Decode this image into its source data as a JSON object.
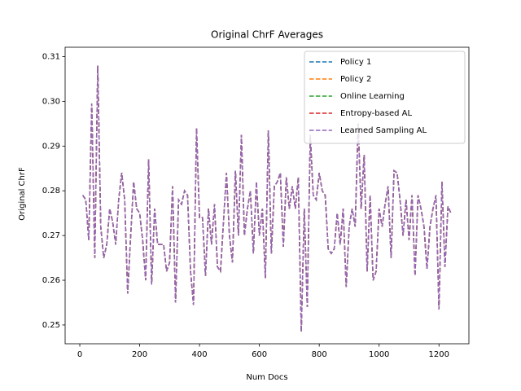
{
  "chart_data": {
    "type": "line",
    "title": "Original ChrF Averages",
    "x_label": "Num Docs",
    "y_label": "Original ChrF",
    "x": [
      10,
      20,
      30,
      40,
      50,
      60,
      70,
      80,
      90,
      100,
      110,
      120,
      130,
      140,
      150,
      160,
      170,
      180,
      190,
      200,
      210,
      220,
      230,
      240,
      250,
      260,
      270,
      280,
      290,
      300,
      310,
      320,
      330,
      340,
      350,
      360,
      370,
      380,
      390,
      400,
      410,
      420,
      430,
      440,
      450,
      460,
      470,
      480,
      490,
      500,
      510,
      520,
      530,
      540,
      550,
      560,
      570,
      580,
      590,
      600,
      610,
      620,
      630,
      640,
      650,
      660,
      670,
      680,
      690,
      700,
      710,
      720,
      730,
      740,
      750,
      760,
      770,
      780,
      790,
      800,
      810,
      820,
      830,
      840,
      850,
      860,
      870,
      880,
      890,
      900,
      910,
      920,
      930,
      940,
      950,
      960,
      970,
      980,
      990,
      1000,
      1010,
      1020,
      1030,
      1040,
      1050,
      1060,
      1070,
      1080,
      1090,
      1100,
      1110,
      1120,
      1130,
      1140,
      1150,
      1160,
      1170,
      1180,
      1190,
      1200,
      1210,
      1220,
      1230,
      1240
    ],
    "series": [
      {
        "name": "Policy 1",
        "color": "#1f77b4",
        "values": [
          0.279,
          0.278,
          0.269,
          0.2995,
          0.265,
          0.308,
          0.272,
          0.265,
          0.268,
          0.276,
          0.273,
          0.268,
          0.278,
          0.284,
          0.278,
          0.257,
          0.27,
          0.282,
          0.276,
          0.275,
          0.269,
          0.26,
          0.287,
          0.259,
          0.276,
          0.268,
          0.268,
          0.268,
          0.262,
          0.264,
          0.281,
          0.255,
          0.278,
          0.277,
          0.28,
          0.279,
          0.262,
          0.2545,
          0.294,
          0.274,
          0.274,
          0.261,
          0.276,
          0.268,
          0.277,
          0.263,
          0.262,
          0.273,
          0.284,
          0.27,
          0.264,
          0.2845,
          0.27,
          0.2925,
          0.27,
          0.276,
          0.28,
          0.266,
          0.282,
          0.27,
          0.276,
          0.2605,
          0.2935,
          0.266,
          0.281,
          0.282,
          0.284,
          0.2675,
          0.283,
          0.276,
          0.281,
          0.276,
          0.283,
          0.2485,
          0.276,
          0.254,
          0.2925,
          0.279,
          0.278,
          0.284,
          0.28,
          0.279,
          0.267,
          0.266,
          0.267,
          0.275,
          0.268,
          0.276,
          0.2585,
          0.272,
          0.276,
          0.272,
          0.295,
          0.276,
          0.288,
          0.262,
          0.279,
          0.26,
          0.262,
          0.276,
          0.272,
          0.277,
          0.281,
          0.265,
          0.2845,
          0.284,
          0.278,
          0.27,
          0.278,
          0.269,
          0.279,
          0.261,
          0.279,
          0.276,
          0.272,
          0.2625,
          0.272,
          0.276,
          0.279,
          0.2535,
          0.282,
          0.263,
          0.2765,
          0.275
        ]
      },
      {
        "name": "Policy 2",
        "color": "#ff7f0e",
        "values": [
          0.279,
          0.278,
          0.269,
          0.2995,
          0.265,
          0.308,
          0.272,
          0.265,
          0.268,
          0.276,
          0.273,
          0.268,
          0.278,
          0.284,
          0.278,
          0.257,
          0.27,
          0.282,
          0.276,
          0.275,
          0.269,
          0.26,
          0.287,
          0.259,
          0.276,
          0.268,
          0.268,
          0.268,
          0.262,
          0.264,
          0.281,
          0.255,
          0.278,
          0.277,
          0.28,
          0.279,
          0.262,
          0.2545,
          0.294,
          0.274,
          0.274,
          0.261,
          0.276,
          0.268,
          0.277,
          0.263,
          0.262,
          0.273,
          0.284,
          0.27,
          0.264,
          0.2845,
          0.27,
          0.2925,
          0.27,
          0.276,
          0.28,
          0.266,
          0.282,
          0.27,
          0.276,
          0.2605,
          0.2935,
          0.266,
          0.281,
          0.282,
          0.284,
          0.2675,
          0.283,
          0.276,
          0.281,
          0.276,
          0.283,
          0.2485,
          0.276,
          0.254,
          0.2925,
          0.279,
          0.278,
          0.284,
          0.28,
          0.279,
          0.267,
          0.266,
          0.267,
          0.275,
          0.268,
          0.276,
          0.2585,
          0.272,
          0.276,
          0.272,
          0.295,
          0.276,
          0.288,
          0.262,
          0.279,
          0.26,
          0.262,
          0.276,
          0.272,
          0.277,
          0.281,
          0.265,
          0.2845,
          0.284,
          0.278,
          0.27,
          0.278,
          0.269,
          0.279,
          0.261,
          0.279,
          0.276,
          0.272,
          0.2625,
          0.272,
          0.276,
          0.279,
          0.2535,
          0.282,
          0.263,
          0.2765,
          0.275
        ]
      },
      {
        "name": "Online Learning",
        "color": "#2ca02c",
        "values": [
          0.279,
          0.278,
          0.269,
          0.2995,
          0.265,
          0.308,
          0.272,
          0.265,
          0.268,
          0.276,
          0.273,
          0.268,
          0.278,
          0.284,
          0.278,
          0.257,
          0.27,
          0.282,
          0.276,
          0.275,
          0.269,
          0.26,
          0.287,
          0.259,
          0.276,
          0.268,
          0.268,
          0.268,
          0.262,
          0.264,
          0.281,
          0.255,
          0.278,
          0.277,
          0.28,
          0.279,
          0.262,
          0.2545,
          0.294,
          0.274,
          0.274,
          0.261,
          0.276,
          0.268,
          0.277,
          0.263,
          0.262,
          0.273,
          0.284,
          0.27,
          0.264,
          0.2845,
          0.27,
          0.2925,
          0.27,
          0.276,
          0.28,
          0.266,
          0.282,
          0.27,
          0.276,
          0.2605,
          0.2935,
          0.266,
          0.281,
          0.282,
          0.284,
          0.2675,
          0.283,
          0.276,
          0.281,
          0.276,
          0.283,
          0.2485,
          0.276,
          0.254,
          0.2925,
          0.279,
          0.278,
          0.284,
          0.28,
          0.279,
          0.267,
          0.266,
          0.267,
          0.275,
          0.268,
          0.276,
          0.2585,
          0.272,
          0.276,
          0.272,
          0.295,
          0.276,
          0.288,
          0.262,
          0.279,
          0.26,
          0.262,
          0.276,
          0.272,
          0.277,
          0.281,
          0.265,
          0.2845,
          0.284,
          0.278,
          0.27,
          0.278,
          0.269,
          0.279,
          0.261,
          0.279,
          0.276,
          0.272,
          0.2625,
          0.272,
          0.276,
          0.279,
          0.2535,
          0.282,
          0.263,
          0.2765,
          0.275
        ]
      },
      {
        "name": "Entropy-based AL",
        "color": "#d62728",
        "values": [
          0.279,
          0.278,
          0.269,
          0.2995,
          0.265,
          0.308,
          0.272,
          0.265,
          0.268,
          0.276,
          0.273,
          0.268,
          0.278,
          0.284,
          0.278,
          0.257,
          0.27,
          0.282,
          0.276,
          0.275,
          0.269,
          0.26,
          0.287,
          0.259,
          0.276,
          0.268,
          0.268,
          0.268,
          0.262,
          0.264,
          0.281,
          0.255,
          0.278,
          0.277,
          0.28,
          0.279,
          0.262,
          0.2545,
          0.294,
          0.274,
          0.274,
          0.261,
          0.276,
          0.268,
          0.277,
          0.263,
          0.262,
          0.273,
          0.284,
          0.27,
          0.264,
          0.2845,
          0.27,
          0.2925,
          0.27,
          0.276,
          0.28,
          0.266,
          0.282,
          0.27,
          0.276,
          0.2605,
          0.2935,
          0.266,
          0.281,
          0.282,
          0.284,
          0.2675,
          0.283,
          0.276,
          0.281,
          0.276,
          0.283,
          0.2485,
          0.276,
          0.254,
          0.2925,
          0.279,
          0.278,
          0.284,
          0.28,
          0.279,
          0.267,
          0.266,
          0.267,
          0.275,
          0.268,
          0.276,
          0.2585,
          0.272,
          0.276,
          0.272,
          0.295,
          0.276,
          0.288,
          0.262,
          0.279,
          0.26,
          0.262,
          0.276,
          0.272,
          0.277,
          0.281,
          0.265,
          0.2845,
          0.284,
          0.278,
          0.27,
          0.278,
          0.269,
          0.279,
          0.261,
          0.279,
          0.276,
          0.272,
          0.2625,
          0.272,
          0.276,
          0.279,
          0.2535,
          0.282,
          0.263,
          0.2765,
          0.275
        ]
      },
      {
        "name": "Learned Sampling AL",
        "color": "#9467bd",
        "values": [
          0.279,
          0.278,
          0.269,
          0.2995,
          0.265,
          0.308,
          0.272,
          0.265,
          0.268,
          0.276,
          0.273,
          0.268,
          0.278,
          0.284,
          0.278,
          0.257,
          0.27,
          0.282,
          0.276,
          0.275,
          0.269,
          0.26,
          0.287,
          0.259,
          0.276,
          0.268,
          0.268,
          0.268,
          0.262,
          0.264,
          0.281,
          0.255,
          0.278,
          0.277,
          0.28,
          0.279,
          0.262,
          0.2545,
          0.294,
          0.274,
          0.274,
          0.261,
          0.276,
          0.268,
          0.277,
          0.263,
          0.262,
          0.273,
          0.284,
          0.27,
          0.264,
          0.2845,
          0.27,
          0.2925,
          0.27,
          0.276,
          0.28,
          0.266,
          0.282,
          0.27,
          0.276,
          0.2605,
          0.2935,
          0.266,
          0.281,
          0.282,
          0.284,
          0.2675,
          0.283,
          0.276,
          0.281,
          0.276,
          0.283,
          0.2485,
          0.276,
          0.254,
          0.2925,
          0.279,
          0.278,
          0.284,
          0.28,
          0.279,
          0.267,
          0.266,
          0.267,
          0.275,
          0.268,
          0.276,
          0.2585,
          0.272,
          0.276,
          0.272,
          0.295,
          0.276,
          0.288,
          0.262,
          0.279,
          0.26,
          0.262,
          0.276,
          0.272,
          0.277,
          0.281,
          0.265,
          0.2845,
          0.284,
          0.278,
          0.27,
          0.278,
          0.269,
          0.279,
          0.261,
          0.279,
          0.276,
          0.272,
          0.2625,
          0.272,
          0.276,
          0.279,
          0.2535,
          0.282,
          0.263,
          0.2765,
          0.275
        ]
      }
    ],
    "xlim": [
      -49,
      1300
    ],
    "xticks": [
      0,
      200,
      400,
      600,
      800,
      1000,
      1200
    ],
    "ylim": [
      0.2458,
      0.3121
    ],
    "yticks": [
      0.25,
      0.26,
      0.27,
      0.28,
      0.29,
      {
        "value": 0.3,
        "label": "0.30"
      },
      0.31
    ],
    "line_style": "dashed",
    "legend": "upper right",
    "grid": false
  }
}
